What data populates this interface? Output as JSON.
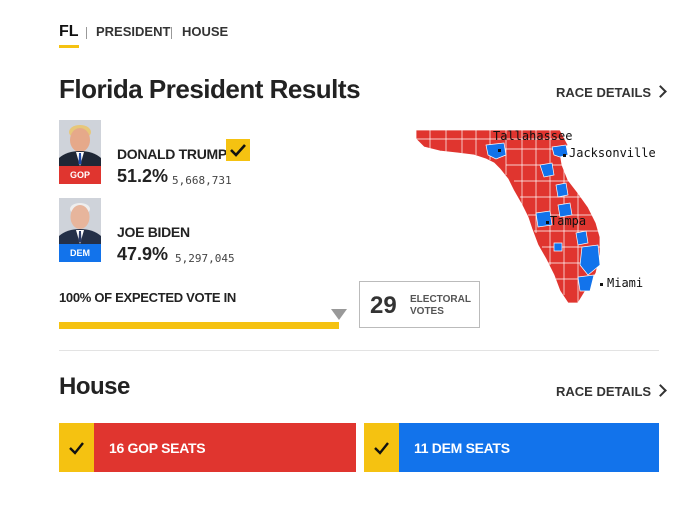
{
  "tabs": {
    "state": "FL",
    "president": "PRESIDENT",
    "house": "HOUSE"
  },
  "president": {
    "title": "Florida President Results",
    "race_details": "RACE DETAILS",
    "candidates": [
      {
        "name": "DONALD TRUMP",
        "party": "GOP",
        "pct": "51.2%",
        "votes": "5,668,731",
        "winner": true,
        "party_color": "#e0352f"
      },
      {
        "name": "JOE BIDEN",
        "party": "DEM",
        "pct": "47.9%",
        "votes": "5,297,045",
        "winner": false,
        "party_color": "#1273eb"
      }
    ],
    "expected_vote": "100% OF EXPECTED VOTE IN",
    "expected_fraction": 1.0,
    "electoral_votes": "29",
    "electoral_label_1": "ELECTORAL",
    "electoral_label_2": "VOTES"
  },
  "map": {
    "cities": [
      {
        "name": "Tallahassee"
      },
      {
        "name": "Jacksonville"
      },
      {
        "name": "Tampa"
      },
      {
        "name": "Miami"
      }
    ],
    "gop_color": "#e0352f",
    "dem_color": "#1273eb"
  },
  "house": {
    "title": "House",
    "race_details": "RACE DETAILS",
    "gop_seats": "16 GOP SEATS",
    "dem_seats": "11 DEM SEATS"
  },
  "colors": {
    "accent": "#f5c211",
    "gop": "#e0352f",
    "dem": "#1273eb"
  }
}
